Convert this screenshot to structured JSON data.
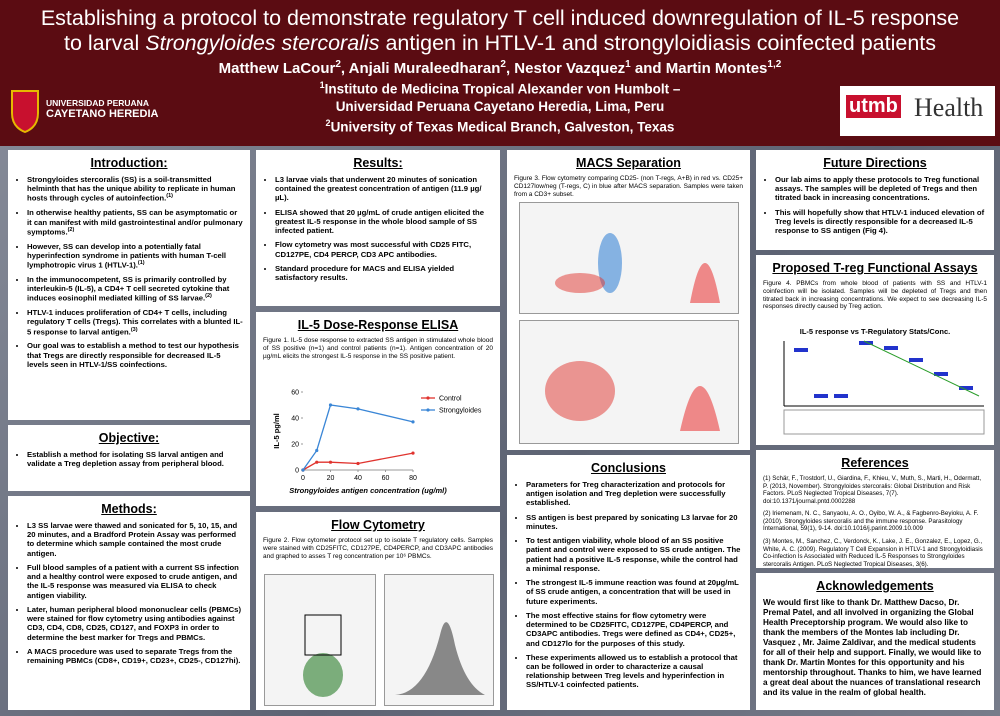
{
  "header": {
    "title_line1": "Establishing a protocol to demonstrate regulatory T cell induced downregulation of IL-5 response",
    "title_line2": [
      "to larval ",
      "Strongyloides stercoralis",
      " antigen in HTLV-1 and strongyloidiasis coinfected patients"
    ],
    "authors": [
      "Matthew LaCour",
      "2",
      ", Anjali Muraleedharan",
      "2",
      ", Nestor Vazquez",
      "1",
      " and Martin Montes",
      "1,2"
    ],
    "affiliations": [
      {
        "sup": "1",
        "lines": [
          "Instituto de Medicina Tropical Alexander von Humbolt –",
          "Universidad Peruana Cayetano Heredia, Lima, Peru"
        ]
      },
      {
        "sup": "2",
        "lines": [
          "University of Texas Medical Branch, Galveston, Texas"
        ]
      }
    ],
    "logo_left": [
      "UNIVERSIDAD PERUANA",
      "CAYETANO HEREDIA"
    ],
    "logo_right": [
      "utmb",
      "Health"
    ]
  },
  "sections": {
    "intro": {
      "title": "Introduction:",
      "bullets": [
        {
          "text": "Strongyloides stercoralis (SS) is a soil-transmitted helminth that has the unique ability to replicate in human hosts through cycles of autoinfection.",
          "ref": "(1)"
        },
        {
          "text": "In otherwise healthy patients, SS can be asymptomatic or it can manifest with mild gastrointestinal and/or pulmonary symptoms.",
          "ref": "(2)"
        },
        {
          "text": "However, SS can develop into a potentially fatal hyperinfection syndrome in patients with human T-cell lymphotropic virus 1 (HTLV-1).",
          "ref": "(1)"
        },
        {
          "text": "In the immunocompetent, SS is primarily controlled by interleukin-5 (IL-5), a CD4+ T cell secreted cytokine that induces eosinophil mediated killing of SS larvae.",
          "ref": "(2)"
        },
        {
          "text": "HTLV-1 induces proliferation of CD4+ T cells, including regulatory T cells (Tregs). This correlates with a blunted IL-5 response to larval antigen.",
          "ref": "(3)"
        },
        {
          "text": "Our goal was to establish a method to test our hypothesis that Tregs are directly responsible for decreased IL-5 levels seen in HTLV-1/SS coinfections."
        }
      ]
    },
    "objective": {
      "title": "Objective:",
      "bullets": [
        {
          "text": "Establish a method for isolating SS larval antigen and validate a Treg depletion assay from peripheral blood."
        }
      ]
    },
    "methods": {
      "title": "Methods:",
      "bullets": [
        {
          "text": "L3 SS larvae were thawed and sonicated for 5, 10, 15, and 20 minutes, and a Bradford Protein Assay was performed to determine which sample contained the most crude antigen."
        },
        {
          "text": "Full blood samples of a patient with a current SS infection and a healthy control were exposed to crude antigen, and the IL-5 response was measured via ELISA to check antigen viability."
        },
        {
          "text": "Later, human peripheral blood mononuclear cells (PBMCs) were stained for flow cytometry using antibodies against CD3, CD4, CD8, CD25, CD127, and FOXP3 in order to determine the best marker for Tregs and PBMCs."
        },
        {
          "text": "A MACS procedure was used to separate Tregs from the remaining PBMCs (CD8+, CD19+, CD23+, CD25-, CD127hi)."
        }
      ]
    },
    "results": {
      "title": "Results:",
      "bullets": [
        {
          "text": "L3 larvae vials that underwent 20 minutes of sonication contained the greatest concentration of antigen (11.9 µg/µL)."
        },
        {
          "text": "ELISA showed that 20 µg/mL of crude antigen elicited the greatest IL-5 response in the whole blood sample of SS infected patient."
        },
        {
          "text": "Flow cytometry was most successful with CD25 FITC, CD127PE, CD4 PERCP, CD3 APC antibodies."
        },
        {
          "text": "Standard procedure for MACS and ELISA yielded satisfactory results."
        }
      ]
    },
    "elisa": {
      "title": "IL-5 Dose-Response ELISA",
      "caption": "Figure 1. IL-5 dose response to extracted SS antigen in stimulated whole blood of SS positive (n=1) and control patients (n=1). Antigen concentration of 20 µg/mL elicits the strongest IL-5 response in the SS positive patient."
    },
    "flow": {
      "title": "Flow Cytometry",
      "caption": "Figure 2. Flow cytometer protocol set up to isolate T regulatory cells. Samples were stained with CD25FITC, CD127PE, CD4PERCP, and CD3APC antibodies and graphed to asses T reg concentration per 10⁶ PBMCs."
    },
    "macs": {
      "title": "MACS Separation",
      "caption": "Figure 3. Flow cytometry comparing CD25- (non T-regs, A+B) in red vs. CD25+ CD127low/neg (T-regs, C) in blue after MACS separation. Samples were taken from a CD3+ subset."
    },
    "conclusions": {
      "title": "Conclusions",
      "bullets": [
        {
          "text": "Parameters for Treg characterization and protocols for antigen isolation and Treg depletion were successfully established."
        },
        {
          "text": "SS antigen is best prepared by sonicating L3 larvae for 20 minutes."
        },
        {
          "text": "To test antigen viability, whole blood of an SS positive patient and control were exposed to SS crude antigen. The patient had a positive IL-5 response, while the control had a minimal response."
        },
        {
          "text": "The strongest IL-5 immune reaction was found at 20µg/mL of SS crude antigen, a concentration that will be used in future experiments."
        },
        {
          "text": "The most effective stains for flow cytometry were determined to be CD25FITC, CD127PE, CD4PERCP, and CD3APC antibodies. Tregs were defined as CD4+, CD25+, and CD127lo for the purposes of this study."
        },
        {
          "text": "These experiments allowed us to establish a protocol that can be followed in order to characterize a causal relationship between Treg levels and hyperinfection in SS/HTLV-1 coinfected patients."
        }
      ]
    },
    "future": {
      "title": "Future Directions",
      "bullets": [
        {
          "text": "Our lab aims to apply these protocols to Treg functional assays. The samples will be depleted of Tregs and then titrated back in increasing concentrations."
        },
        {
          "text": "This will hopefully show that HTLV-1 induced elevation of Treg levels is directly responsible for a decreased IL-5 response to SS antigen (Fig 4)."
        }
      ]
    },
    "proposed": {
      "title": "Proposed T-reg Functional Assays",
      "caption": "Figure 4. PBMCs from whole blood of patients with SS and HTLV-1 coinfection will be isolated. Samples will be depleted of Tregs and then titrated back in increasing concentrations. We expect to see decreasing IL-5 responses directly caused by Treg action.",
      "figure_title": "IL-5 response vs T-Regulatory Stats/Conc."
    },
    "references": {
      "title": "References",
      "items": [
        "(1) Schär, F., Trostdorf, U., Giardina, F., Khieu, V., Muth, S., Marti, H., Odermatt, P. (2013, November). Strongyloides stercoralis: Global Distribution and Risk Factors. PLoS Neglected Tropical Diseases, 7(7). doi:10.1371/journal.pntd.0002288",
        "(2) Iriemenam, N. C., Sanyaolu, A. O., Oyibo, W. A., & Fagbenro-Beyioku, A. F. (2010). Strongyloides stercoralis and the immune response. Parasitology International, 59(1), 9-14. doi:10.1016/j.parint.2009.10.009",
        "(3) Montes, M., Sanchez, C., Verdonck, K., Lake, J. E., Gonzalez, E., Lopez, G., White, A. C. (2009). Regulatory T Cell Expansion in HTLV-1 and Strongyloidiasis Co-infection Is Associated with Reduced IL-5 Responses to Strongyloides stercoralis Antigen. PLoS Neglected Tropical Diseases, 3(6). doi:10.1371/journal.pntd.0000456"
      ]
    },
    "acknowledgements": {
      "title": "Acknowledgements",
      "text": "We would first like to thank Dr. Matthew Dacso, Dr. Premal Patel, and all involved in organizing the Global Health Preceptorship program. We would also like to thank the members of the Montes lab including Dr. Vasquez , Mr. Jaime Zaldivar, and the medical students for all of their help and support. Finally, we would like to thank Dr. Martin Montes for this opportunity and his mentorship throughout. Thanks to him, we have learned a great deal about the nuances of translational research and its value in the realm of global health."
    }
  },
  "chart_data": {
    "type": "line",
    "x_label": "Strongyloides antigen concentration (ug/ml)",
    "y_label": "IL-5 pg/ml",
    "x": [
      0,
      10,
      20,
      40,
      80
    ],
    "series": [
      {
        "name": "Control",
        "color": "#e0332e",
        "values": [
          0,
          6,
          6,
          5,
          13
        ]
      },
      {
        "name": "Strongyloides",
        "color": "#3a86d6",
        "values": [
          0,
          15,
          50,
          47,
          37
        ]
      }
    ],
    "xlim": [
      0,
      80
    ],
    "xticks": [
      0,
      20,
      40,
      60,
      80
    ],
    "ylim": [
      0,
      60
    ],
    "yticks": [
      0,
      20,
      40,
      60
    ],
    "legend": "right"
  }
}
